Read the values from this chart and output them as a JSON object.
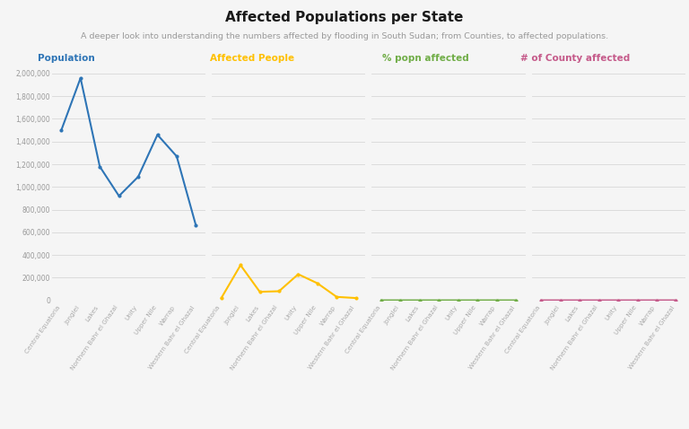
{
  "title": "Affected Populations per State",
  "subtitle": "A deeper look into understanding the numbers affected by flooding in South Sudan; from Counties, to affected populations.",
  "categories": [
    "Central Equatoria",
    "Jonglei",
    "Lakes",
    "Northern Bahr el Ghazal",
    "Unity",
    "Upper Nile",
    "Warrap",
    "Western Bahr el Ghazal"
  ],
  "population": [
    1500000,
    1960000,
    1180000,
    920000,
    1090000,
    1460000,
    1270000,
    660000
  ],
  "affected_people": [
    20000,
    310000,
    75000,
    80000,
    230000,
    150000,
    30000,
    20000
  ],
  "pct_popn_affected": [
    1.3,
    15.9,
    6.4,
    8.7,
    21.1,
    10.3,
    2.4,
    3.0
  ],
  "county_affected": [
    3,
    9,
    5,
    5,
    10,
    8,
    4,
    2
  ],
  "pop_color": "#2e75b6",
  "affected_color": "#ffc000",
  "pct_color": "#70ad47",
  "county_color": "#c55a8a",
  "legend_labels": [
    "Population",
    "Affected People",
    "% popn affected",
    "# of County affected"
  ],
  "background_color": "#f5f5f5",
  "ylim": [
    0,
    2100000
  ],
  "yticks": [
    0,
    200000,
    400000,
    600000,
    800000,
    1000000,
    1200000,
    1400000,
    1600000,
    1800000,
    2000000
  ]
}
